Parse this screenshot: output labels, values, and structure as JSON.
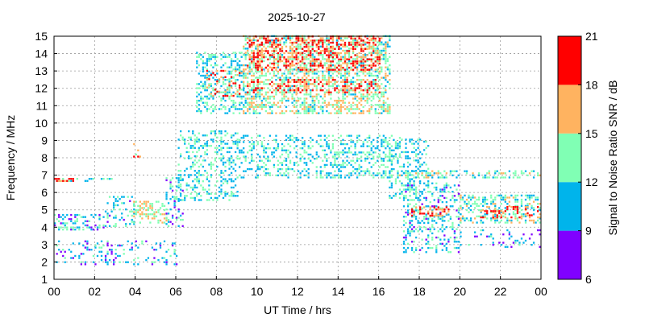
{
  "chart_data": {
    "type": "heatmap",
    "title": "2025-10-27",
    "xlabel": "UT Time / hrs",
    "ylabel": "Frequency / MHz",
    "xlim": [
      0,
      24
    ],
    "ylim": [
      1,
      15
    ],
    "x_ticks": [
      "00",
      "02",
      "04",
      "06",
      "08",
      "10",
      "12",
      "14",
      "16",
      "18",
      "20",
      "22",
      "00"
    ],
    "y_ticks": [
      "1",
      "2",
      "3",
      "4",
      "5",
      "6",
      "7",
      "8",
      "9",
      "10",
      "11",
      "12",
      "13",
      "14",
      "15"
    ],
    "grid": true,
    "colorbar": {
      "label": "Signal to Noise Ratio SNR / dB",
      "range": [
        6,
        21
      ],
      "ticks": [
        "6",
        "9",
        "12",
        "15",
        "18",
        "21"
      ],
      "bands": [
        {
          "from": 6,
          "to": 9,
          "color": "#8000ff"
        },
        {
          "from": 9,
          "to": 12,
          "color": "#00b4eb"
        },
        {
          "from": 12,
          "to": 15,
          "color": "#80ffb4"
        },
        {
          "from": 15,
          "to": 18,
          "color": "#ffb360"
        },
        {
          "from": 18,
          "to": 21,
          "color": "#ff0000"
        }
      ]
    },
    "regions": [
      {
        "t0": 0.0,
        "t1": 6.0,
        "f0": 1.8,
        "f1": 3.2,
        "density": 0.35,
        "snr": 10
      },
      {
        "t0": 0.0,
        "t1": 2.5,
        "f0": 3.8,
        "f1": 4.7,
        "density": 0.6,
        "snr": 11
      },
      {
        "t0": 2.5,
        "t1": 4.0,
        "f0": 4.0,
        "f1": 5.8,
        "density": 0.5,
        "snr": 11
      },
      {
        "t0": 3.9,
        "t1": 5.5,
        "f0": 4.2,
        "f1": 5.5,
        "density": 0.8,
        "snr": 15
      },
      {
        "t0": 5.5,
        "t1": 6.3,
        "f0": 4.0,
        "f1": 6.8,
        "density": 0.5,
        "snr": 11
      },
      {
        "t0": 0.0,
        "t1": 3.0,
        "f0": 6.6,
        "f1": 6.8,
        "density": 0.4,
        "snr": 12
      },
      {
        "t0": 0.0,
        "t1": 1.0,
        "f0": 6.6,
        "f1": 6.8,
        "density": 0.8,
        "snr": 19
      },
      {
        "t0": 3.9,
        "t1": 4.3,
        "f0": 8.0,
        "f1": 8.8,
        "density": 0.5,
        "snr": 17
      },
      {
        "t0": 6.1,
        "t1": 9.0,
        "f0": 5.5,
        "f1": 9.5,
        "density": 0.5,
        "snr": 12
      },
      {
        "t0": 7.0,
        "t1": 9.3,
        "f0": 10.5,
        "f1": 14.0,
        "density": 0.7,
        "snr": 12
      },
      {
        "t0": 7.5,
        "t1": 9.2,
        "f0": 11.5,
        "f1": 13.0,
        "density": 0.5,
        "snr": 17
      },
      {
        "t0": 9.3,
        "t1": 16.5,
        "f0": 10.5,
        "f1": 15.0,
        "density": 0.85,
        "snr": 14
      },
      {
        "t0": 9.5,
        "t1": 16.0,
        "f0": 13.0,
        "f1": 15.0,
        "density": 0.7,
        "snr": 19
      },
      {
        "t0": 9.5,
        "t1": 16.0,
        "f0": 11.7,
        "f1": 12.5,
        "density": 0.5,
        "snr": 19
      },
      {
        "t0": 9.0,
        "t1": 17.0,
        "f0": 6.8,
        "f1": 9.3,
        "density": 0.55,
        "snr": 12
      },
      {
        "t0": 16.5,
        "t1": 18.5,
        "f0": 5.5,
        "f1": 9.0,
        "density": 0.45,
        "snr": 12
      },
      {
        "t0": 17.2,
        "t1": 20.0,
        "f0": 2.5,
        "f1": 6.5,
        "density": 0.55,
        "snr": 11
      },
      {
        "t0": 17.5,
        "t1": 19.5,
        "f0": 4.6,
        "f1": 5.2,
        "density": 0.7,
        "snr": 18
      },
      {
        "t0": 16.5,
        "t1": 24.0,
        "f0": 6.8,
        "f1": 7.2,
        "density": 0.6,
        "snr": 13
      },
      {
        "t0": 20.0,
        "t1": 24.0,
        "f0": 4.2,
        "f1": 5.8,
        "density": 0.75,
        "snr": 13
      },
      {
        "t0": 21.0,
        "t1": 24.0,
        "f0": 4.5,
        "f1": 5.2,
        "density": 0.5,
        "snr": 18
      },
      {
        "t0": 20.0,
        "t1": 24.0,
        "f0": 2.8,
        "f1": 3.8,
        "density": 0.25,
        "snr": 10
      }
    ]
  }
}
